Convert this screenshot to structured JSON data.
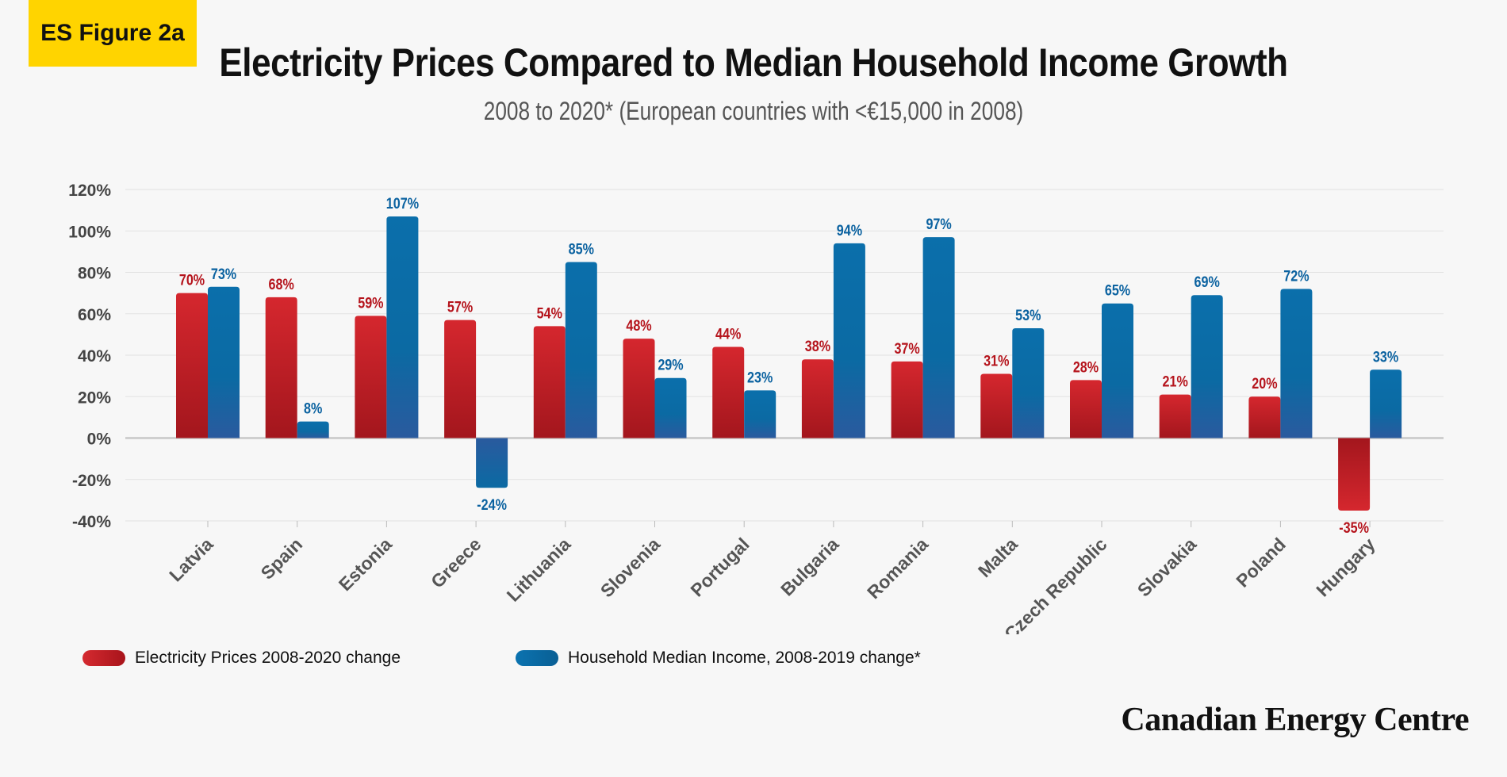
{
  "badge": "ES Figure 2a",
  "colors": {
    "electricity": "#c41f27",
    "income": "#0b6aa3",
    "background": "#f7f7f7"
  },
  "legend": {
    "electricity": "Electricity Prices 2008-2020 change",
    "income": "Household Median Income, 2008-2019 change*"
  },
  "brand": "Canadian Energy Centre",
  "chart_data": {
    "type": "bar",
    "title": "Electricity Prices Compared to Median Household Income Growth",
    "subtitle": "2008 to 2020* (European countries with <€15,000 in 2008)",
    "categories": [
      "Latvia",
      "Spain",
      "Estonia",
      "Greece",
      "Lithuania",
      "Slovenia",
      "Portugal",
      "Bulgaria",
      "Romania",
      "Malta",
      "Czech Republic",
      "Slovakia",
      "Poland",
      "Hungary"
    ],
    "series": [
      {
        "name": "Electricity Prices 2008-2020 change",
        "values": [
          70,
          68,
          59,
          57,
          54,
          48,
          44,
          38,
          37,
          31,
          28,
          21,
          20,
          -35
        ],
        "labels": [
          "70%",
          "68%",
          "59%",
          "57%",
          "54%",
          "48%",
          "44%",
          "38%",
          "37%",
          "31%",
          "28%",
          "21%",
          "20%",
          "-35%"
        ]
      },
      {
        "name": "Household Median Income, 2008-2019 change*",
        "values": [
          73,
          8,
          107,
          -24,
          85,
          29,
          23,
          94,
          97,
          53,
          65,
          69,
          72,
          33
        ],
        "labels": [
          "73%",
          "8%",
          "107%",
          "-24%",
          "85%",
          "29%",
          "23%",
          "94%",
          "97%",
          "53%",
          "65%",
          "69%",
          "72%",
          "33%"
        ]
      }
    ],
    "yticks": [
      "120%",
      "100%",
      "80%",
      "60%",
      "40%",
      "20%",
      "0%",
      "-20%",
      "-40%"
    ],
    "ylim": [
      -40,
      120
    ],
    "grid": true,
    "legend_position": "bottom"
  }
}
